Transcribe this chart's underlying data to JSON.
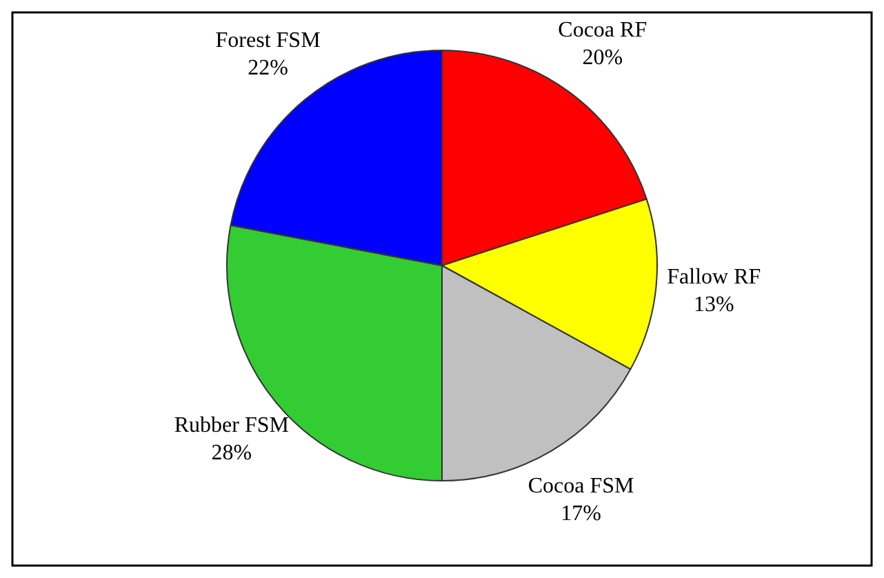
{
  "chart_data": {
    "type": "pie",
    "categories": [
      "Cocoa RF",
      "Fallow RF",
      "Cocoa FSM",
      "Rubber FSM",
      "Forest FSM"
    ],
    "values": [
      20,
      13,
      17,
      28,
      22
    ],
    "colors": [
      "#ff0000",
      "#ffff00",
      "#c0c0c0",
      "#33cc33",
      "#0000ff"
    ],
    "value_labels": [
      "20%",
      "13%",
      "17%",
      "28%",
      "22%"
    ],
    "legend": false
  }
}
